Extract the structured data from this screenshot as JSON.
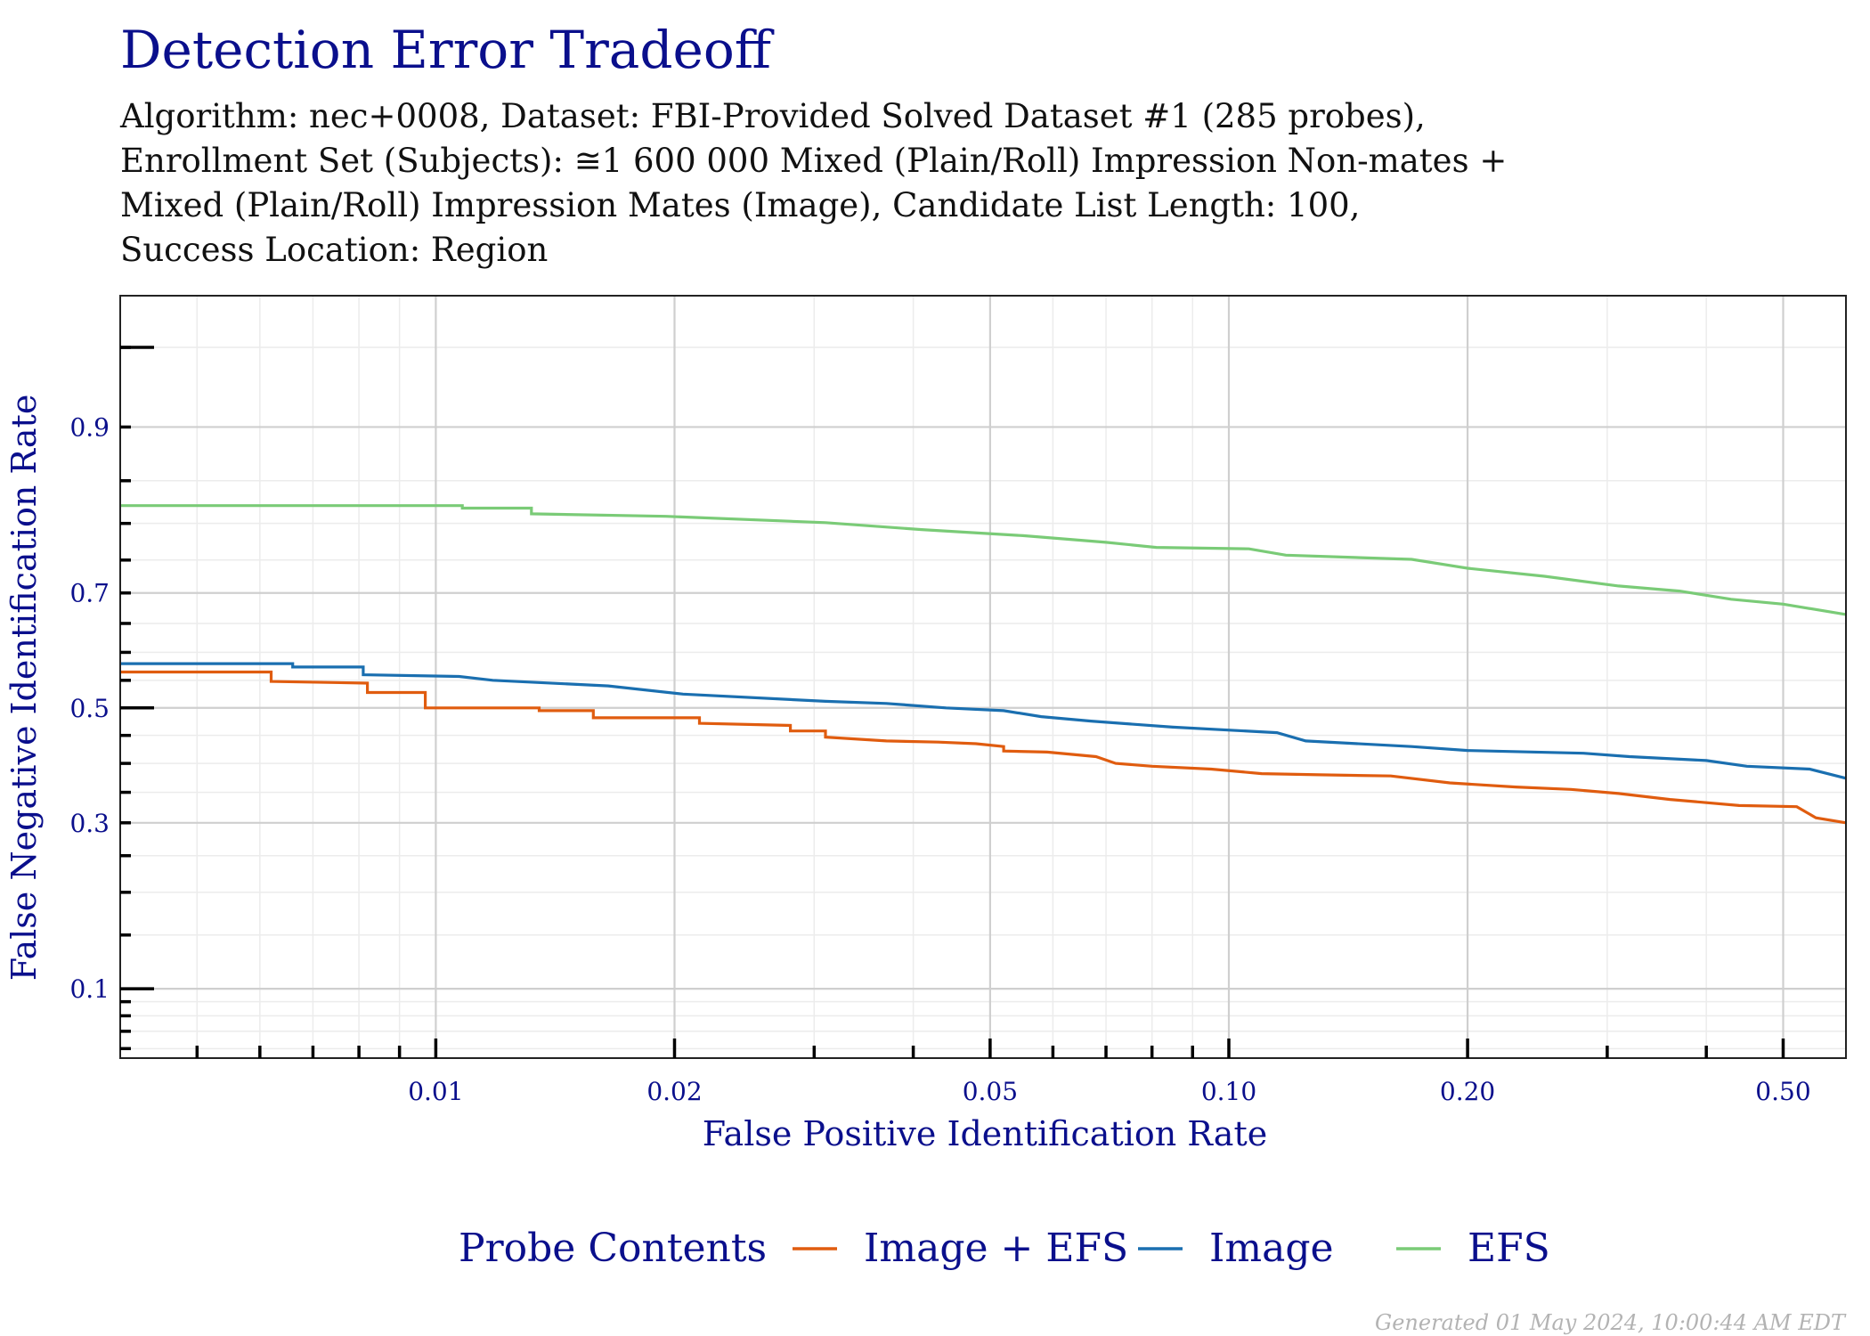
{
  "chart_data": {
    "type": "line",
    "title": "Detection Error Tradeoff",
    "subtitle_lines": [
      "Algorithm: nec+0008, Dataset: FBI-Provided Solved Dataset #1 (285 probes),",
      "Enrollment Set (Subjects): ≅1 600 000 Mixed (Plain/Roll) Impression Non-mates +",
      "Mixed (Plain/Roll) Impression Mates (Image), Candidate List Length: 100,",
      "Success Location: Region"
    ],
    "xlabel": "False Positive Identification Rate",
    "ylabel": "False Negative Identification Rate",
    "x_scale": "log",
    "y_scale": "probit",
    "xlim": [
      0.004,
      0.6
    ],
    "ylim": [
      0.055,
      0.97
    ],
    "x_ticks": [
      0.01,
      0.02,
      0.05,
      0.1,
      0.2,
      0.5
    ],
    "x_tick_labels": [
      "0.01",
      "0.02",
      "0.05",
      "0.10",
      "0.20",
      "0.50"
    ],
    "y_ticks": [
      0.1,
      0.3,
      0.5,
      0.7,
      0.9
    ],
    "y_tick_labels": [
      "0.1",
      "0.3",
      "0.5",
      "0.7",
      "0.9"
    ],
    "grid": true,
    "legend": {
      "title": "Probe Contents",
      "placement": "bottom"
    },
    "series": [
      {
        "name": "Image + EFS",
        "color": "#e05c0f",
        "points": [
          [
            0.004,
            0.565
          ],
          [
            0.0062,
            0.565
          ],
          [
            0.0062,
            0.548
          ],
          [
            0.0082,
            0.545
          ],
          [
            0.0082,
            0.528
          ],
          [
            0.0097,
            0.528
          ],
          [
            0.0097,
            0.5
          ],
          [
            0.0135,
            0.5
          ],
          [
            0.0135,
            0.495
          ],
          [
            0.0158,
            0.495
          ],
          [
            0.0158,
            0.482
          ],
          [
            0.0215,
            0.482
          ],
          [
            0.0215,
            0.472
          ],
          [
            0.028,
            0.468
          ],
          [
            0.028,
            0.458
          ],
          [
            0.031,
            0.458
          ],
          [
            0.031,
            0.447
          ],
          [
            0.037,
            0.44
          ],
          [
            0.043,
            0.438
          ],
          [
            0.048,
            0.435
          ],
          [
            0.052,
            0.43
          ],
          [
            0.052,
            0.422
          ],
          [
            0.059,
            0.42
          ],
          [
            0.068,
            0.412
          ],
          [
            0.072,
            0.4
          ],
          [
            0.08,
            0.395
          ],
          [
            0.095,
            0.39
          ],
          [
            0.11,
            0.382
          ],
          [
            0.13,
            0.38
          ],
          [
            0.16,
            0.378
          ],
          [
            0.19,
            0.366
          ],
          [
            0.23,
            0.359
          ],
          [
            0.27,
            0.355
          ],
          [
            0.31,
            0.348
          ],
          [
            0.36,
            0.338
          ],
          [
            0.44,
            0.328
          ],
          [
            0.52,
            0.326
          ],
          [
            0.55,
            0.308
          ],
          [
            0.6,
            0.3
          ]
        ]
      },
      {
        "name": "Image",
        "color": "#1a6fb0",
        "points": [
          [
            0.004,
            0.58
          ],
          [
            0.0066,
            0.58
          ],
          [
            0.0066,
            0.574
          ],
          [
            0.0081,
            0.574
          ],
          [
            0.0081,
            0.56
          ],
          [
            0.0107,
            0.557
          ],
          [
            0.0118,
            0.55
          ],
          [
            0.0165,
            0.54
          ],
          [
            0.0205,
            0.525
          ],
          [
            0.031,
            0.512
          ],
          [
            0.037,
            0.508
          ],
          [
            0.044,
            0.5
          ],
          [
            0.052,
            0.495
          ],
          [
            0.058,
            0.484
          ],
          [
            0.067,
            0.476
          ],
          [
            0.085,
            0.465
          ],
          [
            0.115,
            0.455
          ],
          [
            0.125,
            0.44
          ],
          [
            0.17,
            0.43
          ],
          [
            0.2,
            0.423
          ],
          [
            0.28,
            0.418
          ],
          [
            0.32,
            0.412
          ],
          [
            0.4,
            0.405
          ],
          [
            0.45,
            0.395
          ],
          [
            0.54,
            0.39
          ],
          [
            0.6,
            0.374
          ]
        ]
      },
      {
        "name": "EFS",
        "color": "#7acb77",
        "points": [
          [
            0.004,
            0.822
          ],
          [
            0.0108,
            0.822
          ],
          [
            0.0108,
            0.819
          ],
          [
            0.0132,
            0.819
          ],
          [
            0.0132,
            0.812
          ],
          [
            0.0195,
            0.809
          ],
          [
            0.031,
            0.801
          ],
          [
            0.041,
            0.792
          ],
          [
            0.055,
            0.784
          ],
          [
            0.07,
            0.775
          ],
          [
            0.081,
            0.768
          ],
          [
            0.106,
            0.766
          ],
          [
            0.118,
            0.757
          ],
          [
            0.17,
            0.751
          ],
          [
            0.2,
            0.738
          ],
          [
            0.25,
            0.726
          ],
          [
            0.31,
            0.711
          ],
          [
            0.37,
            0.703
          ],
          [
            0.43,
            0.69
          ],
          [
            0.5,
            0.682
          ],
          [
            0.6,
            0.665
          ]
        ]
      }
    ]
  },
  "footer": "Generated 01 May 2024, 10:00:44 AM EDT"
}
